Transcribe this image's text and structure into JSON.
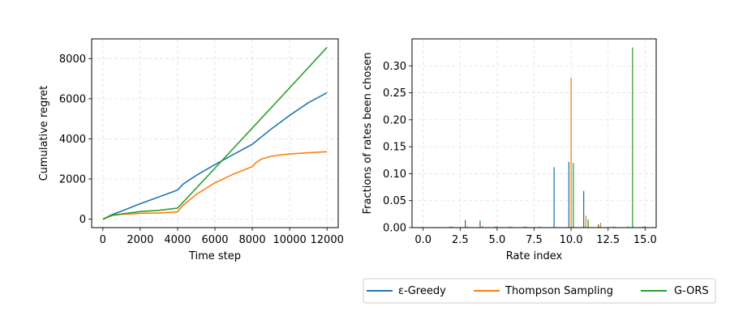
{
  "chart_data": [
    {
      "type": "line",
      "xlabel": "Time step",
      "ylabel": "Cumulative regret",
      "xlim": [
        -600,
        12600
      ],
      "ylim": [
        -420,
        8980
      ],
      "xticks": [
        0,
        2000,
        4000,
        6000,
        8000,
        10000,
        12000
      ],
      "yticks": [
        0,
        2000,
        4000,
        6000,
        8000
      ],
      "grid": true,
      "series": [
        {
          "name": "ε-Greedy",
          "color": "#1f77b4",
          "x": [
            0,
            500,
            1000,
            2000,
            3000,
            4000,
            4300,
            5000,
            6000,
            7000,
            8000,
            9000,
            10000,
            11000,
            12000
          ],
          "y": [
            0,
            230,
            400,
            770,
            1110,
            1450,
            1750,
            2180,
            2720,
            3230,
            3730,
            4480,
            5170,
            5800,
            6300
          ]
        },
        {
          "name": "Thompson Sampling",
          "color": "#ff7f0e",
          "x": [
            0,
            500,
            1000,
            2000,
            3000,
            4000,
            4300,
            5000,
            6000,
            7000,
            8000,
            8200,
            8500,
            9000,
            9500,
            10000,
            11000,
            12000
          ],
          "y": [
            0,
            180,
            240,
            290,
            310,
            360,
            700,
            1230,
            1810,
            2250,
            2620,
            2820,
            3000,
            3130,
            3200,
            3250,
            3310,
            3360
          ]
        },
        {
          "name": "G-ORS",
          "color": "#2ca02c",
          "x": [
            0,
            500,
            1000,
            2000,
            3000,
            4000,
            6000,
            8000,
            10000,
            12000
          ],
          "y": [
            0,
            200,
            260,
            380,
            440,
            550,
            2540,
            4540,
            6540,
            8560
          ]
        }
      ]
    },
    {
      "type": "bar",
      "xlabel": "Rate index",
      "ylabel": "Fractions of rates been chosen",
      "xlim": [
        -0.75,
        15.75
      ],
      "ylim": [
        0,
        0.35
      ],
      "xticks": [
        0.0,
        2.5,
        5.0,
        7.5,
        10.0,
        12.5,
        15.0
      ],
      "xticklabels": [
        "0.0",
        "2.5",
        "5.0",
        "7.5",
        "10.0",
        "12.5",
        "15.0"
      ],
      "yticks": [
        0.0,
        0.05,
        0.1,
        0.15,
        0.2,
        0.25,
        0.3
      ],
      "yticklabels": [
        "0.00",
        "0.05",
        "0.10",
        "0.15",
        "0.20",
        "0.25",
        "0.30"
      ],
      "grid": true,
      "categories": [
        0,
        1,
        2,
        3,
        4,
        5,
        6,
        7,
        8,
        9,
        10,
        11,
        12,
        13,
        14,
        15
      ],
      "series": [
        {
          "name": "ε-Greedy",
          "color": "#1f77b4",
          "values": [
            0.001,
            0.001,
            0.002,
            0.014,
            0.013,
            0.002,
            0.002,
            0.002,
            0.002,
            0.112,
            0.122,
            0.068,
            0.006,
            0.002,
            0.002,
            0.002
          ]
        },
        {
          "name": "Thompson Sampling",
          "color": "#ff7f0e",
          "values": [
            0.001,
            0.001,
            0.002,
            0.002,
            0.003,
            0.003,
            0.002,
            0.002,
            0.001,
            0.001,
            0.278,
            0.022,
            0.009,
            0.002,
            0.001,
            0.003
          ]
        },
        {
          "name": "G-ORS",
          "color": "#2ca02c",
          "values": [
            0,
            0,
            0,
            0,
            0,
            0,
            0,
            0,
            0,
            0,
            0.12,
            0.015,
            0,
            0,
            0.334,
            0
          ]
        }
      ]
    }
  ],
  "legend": {
    "placement": "bottom-right",
    "entries": [
      {
        "label": "ε-Greedy",
        "color": "#1f77b4"
      },
      {
        "label": "Thompson Sampling",
        "color": "#ff7f0e"
      },
      {
        "label": "G-ORS",
        "color": "#2ca02c"
      }
    ]
  }
}
